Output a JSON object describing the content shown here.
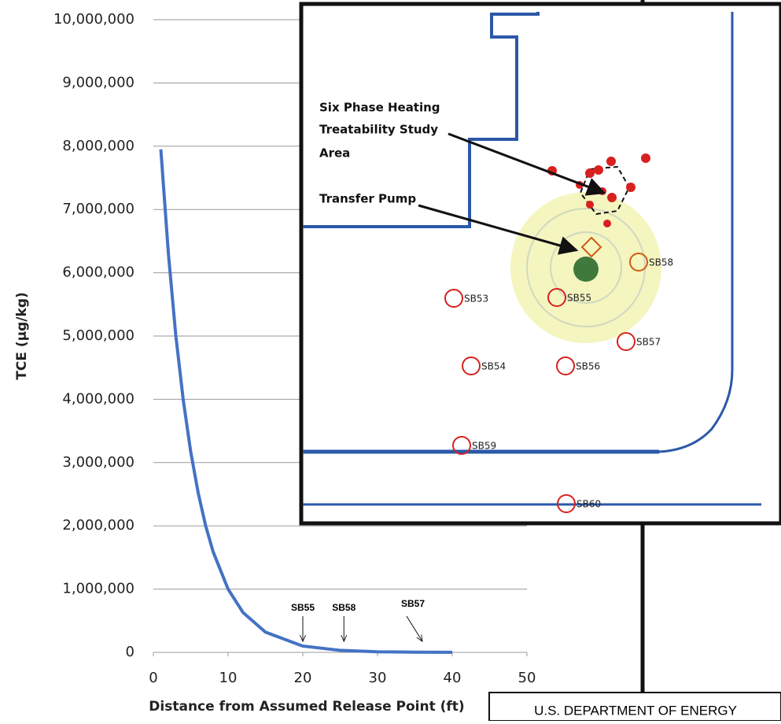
{
  "chart_data": {
    "type": "line",
    "x_label": "Distance from Assumed Release Point (ft)",
    "y_label": "TCE (µg/kg)",
    "x": [
      1,
      2,
      3,
      4,
      5,
      6,
      7,
      8,
      10,
      12,
      15,
      20,
      25,
      30,
      35,
      40
    ],
    "series": [
      {
        "name": "TCE",
        "color": "#4472c4",
        "values": [
          7950000,
          6320000,
          5010000,
          3990000,
          3170000,
          2520000,
          2000000,
          1590000,
          1000000,
          630000,
          320000,
          100000,
          32000,
          10000,
          3000,
          1000
        ]
      }
    ],
    "xlim": [
      0,
      50
    ],
    "xticks": [
      0,
      10,
      20,
      30,
      40,
      50
    ],
    "ylim": [
      0,
      10000000
    ],
    "yticks": [
      0,
      {
        "value": 1000000,
        "label": "1,000,000"
      },
      {
        "value": 2000000,
        "label": "2,000,000"
      },
      {
        "value": 3000000,
        "label": "3,000,000"
      },
      {
        "value": 4000000,
        "label": "4,000,000"
      },
      {
        "value": 5000000,
        "label": "5,000,000"
      },
      {
        "value": 6000000,
        "label": "6,000,000"
      },
      {
        "value": 7000000,
        "label": "7,000,000"
      },
      {
        "value": 8000000,
        "label": "8,000,000"
      },
      {
        "value": 9000000,
        "label": "9,000,000"
      },
      {
        "value": 10000000,
        "label": "10,000,000"
      }
    ],
    "grid": true,
    "annotations": [
      {
        "text": "SB55",
        "x": 20
      },
      {
        "text": "SB58",
        "x": 25.5
      },
      {
        "text": "SB57",
        "x": 36
      }
    ]
  },
  "map": {
    "callouts": [
      "Six Phase Heating",
      "Treatability Study",
      "Area",
      "Transfer Pump"
    ],
    "borings": [
      "SB53",
      "SB54",
      "SB55",
      "SB56",
      "SB57",
      "SB58",
      "SB59",
      "SB60"
    ]
  },
  "footer": "U.S. DEPARTMENT OF ENERGY"
}
